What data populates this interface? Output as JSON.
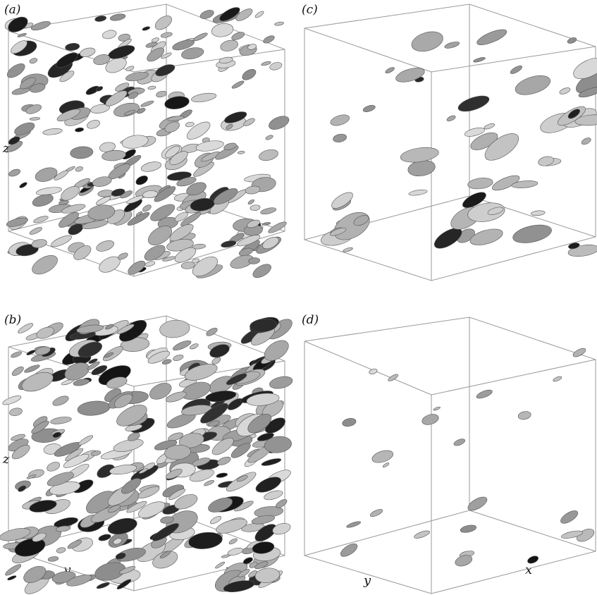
{
  "figure": {
    "panels": [
      {
        "id": "a",
        "label": "(a)",
        "axes": {
          "z": "z"
        }
      },
      {
        "id": "b",
        "label": "(b)",
        "axes": {
          "z": "z",
          "y": "y",
          "x": "x"
        }
      },
      {
        "id": "c",
        "label": "(c)",
        "axes": {}
      },
      {
        "id": "d",
        "label": "(d)",
        "axes": {
          "y": "y",
          "x": "x"
        }
      }
    ]
  }
}
